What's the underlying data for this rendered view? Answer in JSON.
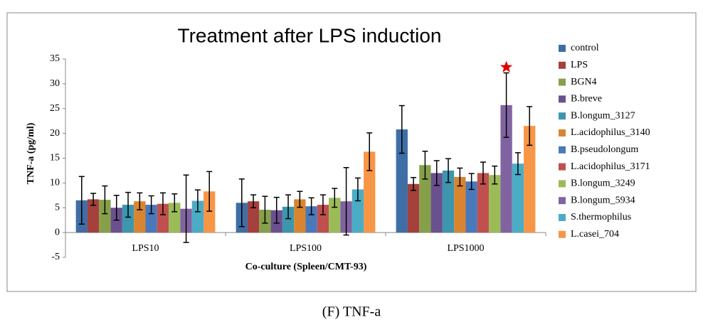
{
  "chart_data": {
    "type": "bar",
    "title": "Treatment after LPS induction",
    "x_label": "Co-culture (Spleen/CMT-93)",
    "y_label": "TNF-a (pg/ml)",
    "categories": [
      "LPS10",
      "LPS100",
      "LPS1000"
    ],
    "ylim": [
      -5,
      35
    ],
    "yticks": [
      -5,
      0,
      5,
      10,
      15,
      20,
      25,
      30,
      35
    ],
    "grid": false,
    "legend": "right",
    "series": [
      {
        "name": "control",
        "color": "#3f6ea6",
        "values": [
          6.5,
          6,
          20.8
        ],
        "errors": [
          4.8,
          4.8,
          4.8
        ]
      },
      {
        "name": "LPS",
        "color": "#a5403d",
        "values": [
          6.7,
          6.3,
          9.8
        ],
        "errors": [
          1.2,
          1.3,
          1.3
        ]
      },
      {
        "name": "BGN4",
        "color": "#86a04a",
        "values": [
          6.6,
          4.6,
          13.6
        ],
        "errors": [
          2.8,
          2.7,
          2.8
        ]
      },
      {
        "name": "B.breve",
        "color": "#6b5090",
        "values": [
          5,
          4.5,
          12
        ],
        "errors": [
          2.5,
          2.6,
          2.5
        ]
      },
      {
        "name": "B.longum_3127",
        "color": "#3d96ad",
        "values": [
          5.6,
          5.2,
          12.5
        ],
        "errors": [
          2.5,
          2.4,
          2.4
        ]
      },
      {
        "name": "L.acidophilus_3140",
        "color": "#d98530",
        "values": [
          6.3,
          6.7,
          11.2
        ],
        "errors": [
          1.7,
          1.6,
          1.8
        ]
      },
      {
        "name": "B.pseudolongum",
        "color": "#4a79bb",
        "values": [
          5.6,
          5.3,
          10.3
        ],
        "errors": [
          1.8,
          1.7,
          1.6
        ]
      },
      {
        "name": "L.acidophilus_3171",
        "color": "#c0504d",
        "values": [
          5.8,
          5.6,
          12
        ],
        "errors": [
          2.2,
          2,
          2.2
        ]
      },
      {
        "name": "B.longum_3249",
        "color": "#9bbb59",
        "values": [
          6,
          7,
          11.6
        ],
        "errors": [
          1.8,
          1.9,
          1.8
        ]
      },
      {
        "name": "B.longum_5934",
        "color": "#8064a2",
        "values": [
          4.8,
          6.3,
          25.7
        ],
        "errors": [
          6.8,
          6.8,
          6.5
        ]
      },
      {
        "name": "S.thermophilus",
        "color": "#4bacc6",
        "values": [
          6.4,
          8.7,
          13.9
        ],
        "errors": [
          2.2,
          2.3,
          2.2
        ]
      },
      {
        "name": "L.casei_704",
        "color": "#f79646",
        "values": [
          8.3,
          16.3,
          21.5
        ],
        "errors": [
          4,
          3.8,
          3.9
        ]
      }
    ]
  },
  "caption": "(F)  TNF-a"
}
